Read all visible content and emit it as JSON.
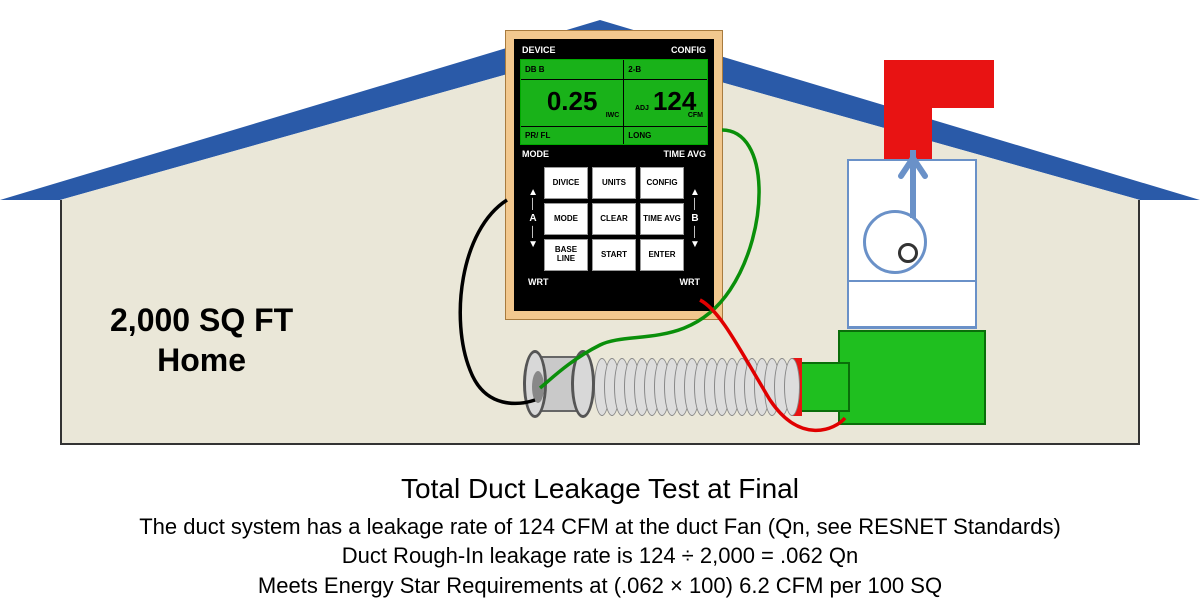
{
  "home": {
    "line1": "2,000 SQ FT",
    "line2": "Home"
  },
  "roof": {
    "fill": "#eae7d8",
    "stroke": "#2a5aa8",
    "stroke_width": 6
  },
  "meter": {
    "screen": {
      "top_left": "DB B",
      "top_right": "2-B",
      "val_left": "0.25",
      "unit_left": "IWC",
      "adj_label": "ADJ",
      "val_right": "124",
      "unit_right": "CFM",
      "bot_left": "PR/ FL",
      "bot_right": "LONG"
    },
    "under_left": "MODE",
    "under_right": "TIME AVG",
    "arrow_left": "A",
    "arrow_right": "B",
    "keys": [
      "DIVICE",
      "UNITS",
      "CONFIG",
      "MODE",
      "CLEAR",
      "TIME AVG",
      "BASE LINE",
      "START",
      "ENTER"
    ],
    "wrt_left": "WRT",
    "wrt_right": "WRT",
    "head_left": "DEVICE",
    "head_right": "CONFIG"
  },
  "hoses": {
    "black": "#000000",
    "green": "#0a8f0a",
    "red": "#e00000"
  },
  "fan_arrow_color": "#6a91c8",
  "caption": {
    "title": "Total Duct Leakage Test at Final",
    "l1": "The duct system has a leakage rate of 124 CFM at the duct Fan (Qn, see RESNET Standards)",
    "l2": "Duct Rough-In leakage rate is 124 ÷ 2,000 = .062 Qn",
    "l3": "Meets Energy Star Requirements at (.062 × 100) 6.2 CFM per 100 SQ"
  }
}
